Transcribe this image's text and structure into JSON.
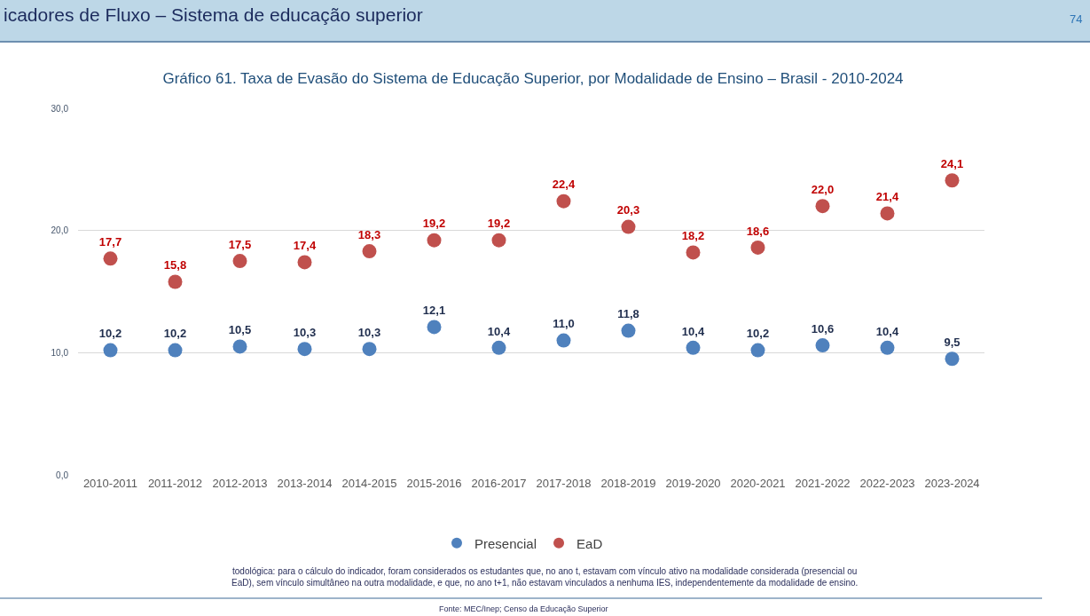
{
  "chart_data": {
    "type": "scatter",
    "title": "Gráfico 61. Taxa de Evasão do Sistema de Educação Superior, por Modalidade de Ensino – Brasil - 2010-2024",
    "annotations": [
      "icadores de Fluxo – Sistema de educação superior",
      "74",
      "todológica: para o cálculo do indicador, foram considerados os estudantes que, no ano t, estavam com vínculo ativo na modalidade considerada (presencial ou EaD), sem vínculo simultâneo na outra modalidade, e que, no ano t+1, não estavam vinculados a nenhuma IES, independentemente da modalidade de ensino.",
      "Fonte: MEC/Inep; Censo da Educação Superior"
    ],
    "categories": [
      "2010-2011",
      "2011-2012",
      "2012-2013",
      "2013-2014",
      "2014-2015",
      "2015-2016",
      "2016-2017",
      "2017-2018",
      "2018-2019",
      "2019-2020",
      "2020-2021",
      "2021-2022",
      "2022-2023",
      "2023-2024"
    ],
    "series": [
      {
        "name": "Presencial",
        "color": "#4f81bd",
        "values": [
          10.2,
          10.2,
          10.5,
          10.3,
          10.3,
          12.1,
          10.4,
          11.0,
          11.8,
          10.4,
          10.2,
          10.6,
          10.4,
          9.5
        ],
        "value_labels": [
          "10,2",
          "10,2",
          "10,5",
          "10,3",
          "10,3",
          "12,1",
          "10,4",
          "11,0",
          "11,8",
          "10,4",
          "10,2",
          "10,6",
          "10,4",
          "9,5"
        ]
      },
      {
        "name": "EaD",
        "color": "#c0504d",
        "values": [
          17.7,
          15.8,
          17.5,
          17.4,
          18.3,
          19.2,
          19.2,
          22.4,
          20.3,
          18.2,
          18.6,
          22.0,
          21.4,
          24.1
        ],
        "value_labels": [
          "17,7",
          "15,8",
          "17,5",
          "17,4",
          "18,3",
          "19,2",
          "19,2",
          "22,4",
          "20,3",
          "18,2",
          "18,6",
          "22,0",
          "21,4",
          "24,1"
        ]
      }
    ],
    "ylim": [
      0,
      30
    ],
    "yticks": [
      {
        "value": 0,
        "label": "0,0"
      },
      {
        "value": 10,
        "label": "10,0"
      },
      {
        "value": 20,
        "label": "20,0"
      },
      {
        "value": 30,
        "label": "30,0"
      }
    ],
    "grid": "y",
    "legend": "bottom",
    "marker": "circle"
  }
}
